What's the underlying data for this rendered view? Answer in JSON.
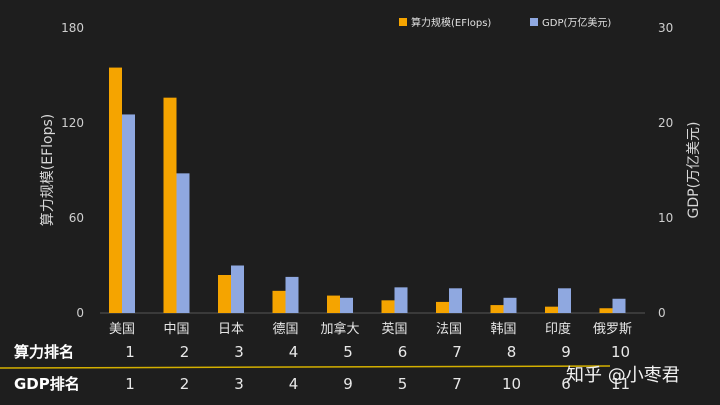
{
  "chart_data": {
    "type": "bar",
    "categories": [
      "美国",
      "中国",
      "日本",
      "德国",
      "加拿大",
      "英国",
      "法国",
      "韩国",
      "印度",
      "俄罗斯"
    ],
    "series": [
      {
        "name": "算力规模(EFlops)",
        "axis": "left",
        "color": "#f5a400",
        "values": [
          155,
          136,
          24,
          14,
          11,
          8,
          7,
          5,
          4,
          3
        ]
      },
      {
        "name": "GDP(万亿美元)",
        "axis": "right",
        "color": "#8fa8e0",
        "values": [
          20.9,
          14.7,
          5.0,
          3.8,
          1.6,
          2.7,
          2.6,
          1.6,
          2.6,
          1.5
        ]
      }
    ],
    "left_axis": {
      "label": "算力规模(EFlops)",
      "min": 0,
      "max": 180,
      "ticks": [
        "0",
        "60",
        "120",
        "180"
      ]
    },
    "right_axis": {
      "label": "GDP(万亿美元)",
      "min": 0,
      "max": 30,
      "ticks": [
        "0",
        "10",
        "20",
        "30"
      ]
    },
    "legend_position": "top-right",
    "grid": false
  },
  "rank_table": {
    "compute_label": "算力排名",
    "compute_ranks": [
      "1",
      "2",
      "3",
      "4",
      "5",
      "6",
      "7",
      "8",
      "9",
      "10"
    ],
    "gdp_label": "GDP排名",
    "gdp_ranks": [
      "1",
      "2",
      "3",
      "4",
      "9",
      "5",
      "7",
      "10",
      "6",
      "11"
    ],
    "separator_color": "#d4b000"
  },
  "watermark": "知乎 @小枣君"
}
